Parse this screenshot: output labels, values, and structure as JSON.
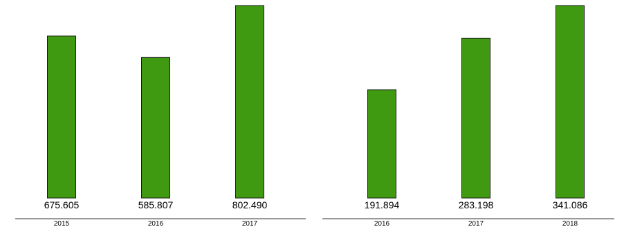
{
  "chart_data": [
    {
      "type": "bar",
      "categories": [
        "2015",
        "2016",
        "2017"
      ],
      "values": [
        675.605,
        585.807,
        802.49
      ],
      "value_labels": [
        "675.605",
        "585.807",
        "802.490"
      ],
      "bar_color": "#3f9a12",
      "grid": false,
      "legend": "none"
    },
    {
      "type": "bar",
      "categories": [
        "2016",
        "2017",
        "2018"
      ],
      "values": [
        191.894,
        283.198,
        341.086
      ],
      "value_labels": [
        "191.894",
        "283.198",
        "341.086"
      ],
      "bar_color": "#3f9a12",
      "grid": false,
      "legend": "none"
    }
  ]
}
